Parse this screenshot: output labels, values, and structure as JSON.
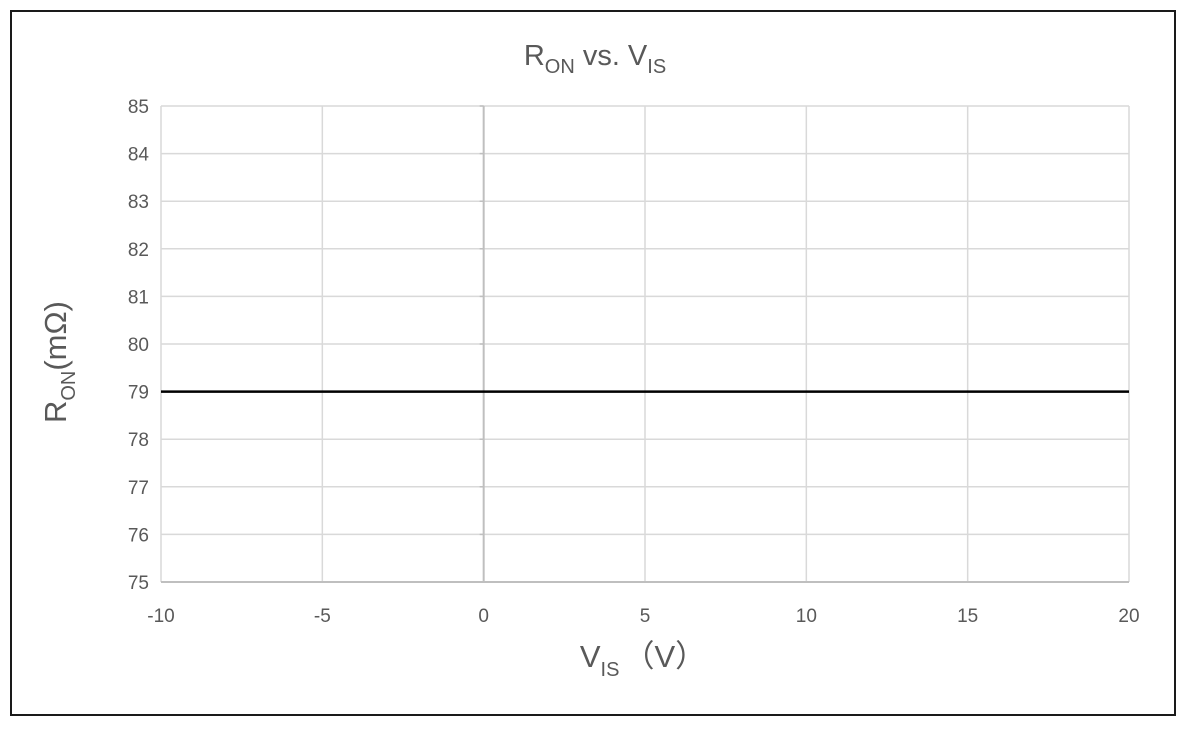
{
  "chart_data": {
    "type": "line",
    "title": {
      "main": "R",
      "main_sub": "ON",
      "middle": " vs. V",
      "end_sub": "IS"
    },
    "xlabel": {
      "main": "V",
      "sub": "IS",
      "units": "（V）"
    },
    "ylabel": {
      "main": "R",
      "sub": "ON",
      "units": "(mΩ)"
    },
    "xlim": [
      -10,
      20
    ],
    "ylim": [
      75,
      85
    ],
    "x_ticks": [
      -10,
      -5,
      0,
      5,
      10,
      15,
      20
    ],
    "y_ticks": [
      75,
      76,
      77,
      78,
      79,
      80,
      81,
      82,
      83,
      84,
      85
    ],
    "grid": true,
    "legend": "none",
    "series": [
      {
        "color": "#000000",
        "points": [
          {
            "x": -10,
            "y": 79
          },
          {
            "x": 20,
            "y": 79
          }
        ]
      }
    ],
    "colors": {
      "text": "#595959",
      "grid": "#d9d9d9",
      "axis": "#bfbfbf",
      "frame": "#1a1a1a"
    }
  }
}
